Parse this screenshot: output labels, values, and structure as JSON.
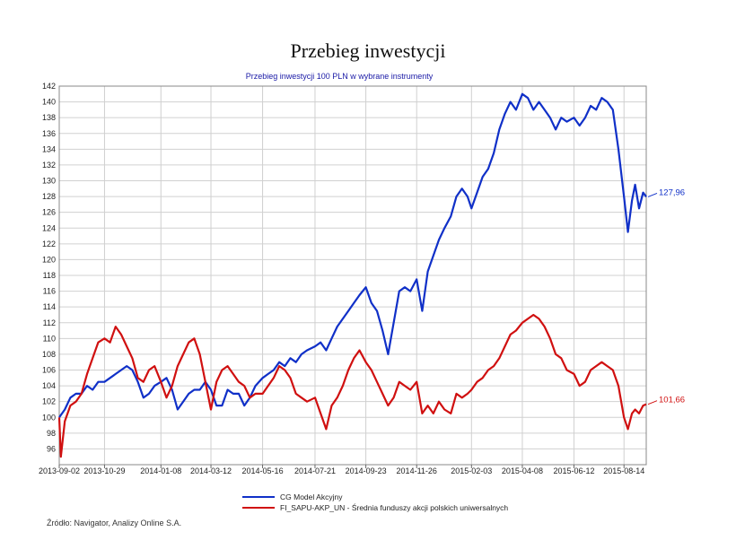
{
  "page": {
    "title": "Przebieg inwestycji",
    "source": "Źródło: Navigator, Analizy Online S.A."
  },
  "chart_data": {
    "type": "line",
    "title": "Przebieg inwestycji",
    "subtitle": "Przebieg inwestycji 100 PLN w wybrane instrumenty",
    "xlabel": "",
    "ylabel": "",
    "ylim": [
      94,
      142
    ],
    "yticks": [
      96,
      98,
      100,
      102,
      104,
      106,
      108,
      110,
      112,
      114,
      116,
      118,
      120,
      122,
      124,
      126,
      128,
      130,
      132,
      134,
      136,
      138,
      140,
      142
    ],
    "x_start": "2013-09-02",
    "x_end": "2015-09-11",
    "xticks": [
      "2013-09-02",
      "2013-10-29",
      "2014-01-08",
      "2014-03-12",
      "2014-05-16",
      "2014-07-21",
      "2014-09-23",
      "2014-11-26",
      "2015-02-03",
      "2015-04-08",
      "2015-06-12",
      "2015-08-14"
    ],
    "grid": true,
    "legend": "bottom",
    "series": [
      {
        "name": "CG Model Akcyjny",
        "color": "#1030c8",
        "end_label": "127,96",
        "points": [
          [
            "2013-09-02",
            100.0
          ],
          [
            "2013-09-09",
            101.0
          ],
          [
            "2013-09-16",
            102.5
          ],
          [
            "2013-09-23",
            103.0
          ],
          [
            "2013-09-30",
            103.0
          ],
          [
            "2013-10-07",
            104.0
          ],
          [
            "2013-10-14",
            103.5
          ],
          [
            "2013-10-21",
            104.5
          ],
          [
            "2013-10-29",
            104.5
          ],
          [
            "2013-11-05",
            105.0
          ],
          [
            "2013-11-12",
            105.5
          ],
          [
            "2013-11-19",
            106.0
          ],
          [
            "2013-11-26",
            106.5
          ],
          [
            "2013-12-03",
            106.0
          ],
          [
            "2013-12-10",
            104.5
          ],
          [
            "2013-12-17",
            102.5
          ],
          [
            "2013-12-24",
            103.0
          ],
          [
            "2013-12-31",
            104.0
          ],
          [
            "2014-01-08",
            104.5
          ],
          [
            "2014-01-15",
            105.0
          ],
          [
            "2014-01-22",
            103.5
          ],
          [
            "2014-01-29",
            101.0
          ],
          [
            "2014-02-05",
            102.0
          ],
          [
            "2014-02-12",
            103.0
          ],
          [
            "2014-02-19",
            103.5
          ],
          [
            "2014-02-26",
            103.5
          ],
          [
            "2014-03-05",
            104.5
          ],
          [
            "2014-03-12",
            103.5
          ],
          [
            "2014-03-19",
            101.5
          ],
          [
            "2014-03-26",
            101.5
          ],
          [
            "2014-04-02",
            103.5
          ],
          [
            "2014-04-09",
            103.0
          ],
          [
            "2014-04-16",
            103.0
          ],
          [
            "2014-04-23",
            101.5
          ],
          [
            "2014-04-30",
            102.5
          ],
          [
            "2014-05-07",
            104.0
          ],
          [
            "2014-05-16",
            105.0
          ],
          [
            "2014-05-23",
            105.5
          ],
          [
            "2014-05-30",
            106.0
          ],
          [
            "2014-06-06",
            107.0
          ],
          [
            "2014-06-13",
            106.5
          ],
          [
            "2014-06-20",
            107.5
          ],
          [
            "2014-06-27",
            107.0
          ],
          [
            "2014-07-04",
            108.0
          ],
          [
            "2014-07-11",
            108.5
          ],
          [
            "2014-07-21",
            109.0
          ],
          [
            "2014-07-28",
            109.5
          ],
          [
            "2014-08-04",
            108.5
          ],
          [
            "2014-08-11",
            110.0
          ],
          [
            "2014-08-18",
            111.5
          ],
          [
            "2014-08-25",
            112.5
          ],
          [
            "2014-09-01",
            113.5
          ],
          [
            "2014-09-08",
            114.5
          ],
          [
            "2014-09-15",
            115.5
          ],
          [
            "2014-09-23",
            116.5
          ],
          [
            "2014-09-30",
            114.5
          ],
          [
            "2014-10-07",
            113.5
          ],
          [
            "2014-10-14",
            111.0
          ],
          [
            "2014-10-21",
            108.0
          ],
          [
            "2014-10-28",
            112.0
          ],
          [
            "2014-11-04",
            116.0
          ],
          [
            "2014-11-11",
            116.5
          ],
          [
            "2014-11-18",
            116.0
          ],
          [
            "2014-11-26",
            117.5
          ],
          [
            "2014-12-03",
            113.5
          ],
          [
            "2014-12-10",
            118.5
          ],
          [
            "2014-12-17",
            120.5
          ],
          [
            "2014-12-24",
            122.5
          ],
          [
            "2014-12-31",
            124.0
          ],
          [
            "2015-01-08",
            125.5
          ],
          [
            "2015-01-15",
            128.0
          ],
          [
            "2015-01-22",
            129.0
          ],
          [
            "2015-01-29",
            128.0
          ],
          [
            "2015-02-03",
            126.5
          ],
          [
            "2015-02-10",
            128.5
          ],
          [
            "2015-02-17",
            130.5
          ],
          [
            "2015-02-24",
            131.5
          ],
          [
            "2015-03-03",
            133.5
          ],
          [
            "2015-03-10",
            136.5
          ],
          [
            "2015-03-17",
            138.5
          ],
          [
            "2015-03-24",
            140.0
          ],
          [
            "2015-03-31",
            139.0
          ],
          [
            "2015-04-08",
            141.0
          ],
          [
            "2015-04-15",
            140.5
          ],
          [
            "2015-04-22",
            139.0
          ],
          [
            "2015-04-29",
            140.0
          ],
          [
            "2015-05-06",
            139.0
          ],
          [
            "2015-05-13",
            138.0
          ],
          [
            "2015-05-20",
            136.5
          ],
          [
            "2015-05-27",
            138.0
          ],
          [
            "2015-06-03",
            137.5
          ],
          [
            "2015-06-12",
            138.0
          ],
          [
            "2015-06-19",
            137.0
          ],
          [
            "2015-06-26",
            138.0
          ],
          [
            "2015-07-03",
            139.5
          ],
          [
            "2015-07-10",
            139.0
          ],
          [
            "2015-07-17",
            140.5
          ],
          [
            "2015-07-24",
            140.0
          ],
          [
            "2015-07-31",
            139.0
          ],
          [
            "2015-08-07",
            134.0
          ],
          [
            "2015-08-14",
            128.0
          ],
          [
            "2015-08-19",
            123.5
          ],
          [
            "2015-08-24",
            127.5
          ],
          [
            "2015-08-28",
            129.5
          ],
          [
            "2015-09-02",
            126.5
          ],
          [
            "2015-09-07",
            128.5
          ],
          [
            "2015-09-11",
            127.96
          ]
        ]
      },
      {
        "name": "FI_SAPU-AKP_UN - Średnia funduszy akcji polskich uniwersalnych",
        "color": "#d01010",
        "end_label": "101,66",
        "points": [
          [
            "2013-09-02",
            100.0
          ],
          [
            "2013-09-04",
            95.0
          ],
          [
            "2013-09-09",
            99.5
          ],
          [
            "2013-09-16",
            101.5
          ],
          [
            "2013-09-23",
            102.0
          ],
          [
            "2013-09-30",
            103.0
          ],
          [
            "2013-10-07",
            105.5
          ],
          [
            "2013-10-14",
            107.5
          ],
          [
            "2013-10-21",
            109.5
          ],
          [
            "2013-10-29",
            110.0
          ],
          [
            "2013-11-05",
            109.5
          ],
          [
            "2013-11-12",
            111.5
          ],
          [
            "2013-11-19",
            110.5
          ],
          [
            "2013-11-26",
            109.0
          ],
          [
            "2013-12-03",
            107.5
          ],
          [
            "2013-12-10",
            105.0
          ],
          [
            "2013-12-17",
            104.5
          ],
          [
            "2013-12-24",
            106.0
          ],
          [
            "2013-12-31",
            106.5
          ],
          [
            "2014-01-08",
            104.5
          ],
          [
            "2014-01-15",
            102.5
          ],
          [
            "2014-01-22",
            104.0
          ],
          [
            "2014-01-29",
            106.5
          ],
          [
            "2014-02-05",
            108.0
          ],
          [
            "2014-02-12",
            109.5
          ],
          [
            "2014-02-19",
            110.0
          ],
          [
            "2014-02-26",
            108.0
          ],
          [
            "2014-03-05",
            104.5
          ],
          [
            "2014-03-12",
            101.0
          ],
          [
            "2014-03-19",
            104.5
          ],
          [
            "2014-03-26",
            106.0
          ],
          [
            "2014-04-02",
            106.5
          ],
          [
            "2014-04-09",
            105.5
          ],
          [
            "2014-04-16",
            104.5
          ],
          [
            "2014-04-23",
            104.0
          ],
          [
            "2014-04-30",
            102.5
          ],
          [
            "2014-05-07",
            103.0
          ],
          [
            "2014-05-16",
            103.0
          ],
          [
            "2014-05-23",
            104.0
          ],
          [
            "2014-05-30",
            105.0
          ],
          [
            "2014-06-06",
            106.5
          ],
          [
            "2014-06-13",
            106.0
          ],
          [
            "2014-06-20",
            105.0
          ],
          [
            "2014-06-27",
            103.0
          ],
          [
            "2014-07-04",
            102.5
          ],
          [
            "2014-07-11",
            102.0
          ],
          [
            "2014-07-21",
            102.5
          ],
          [
            "2014-07-28",
            100.5
          ],
          [
            "2014-08-04",
            98.5
          ],
          [
            "2014-08-11",
            101.5
          ],
          [
            "2014-08-18",
            102.5
          ],
          [
            "2014-08-25",
            104.0
          ],
          [
            "2014-09-01",
            106.0
          ],
          [
            "2014-09-08",
            107.5
          ],
          [
            "2014-09-15",
            108.5
          ],
          [
            "2014-09-23",
            107.0
          ],
          [
            "2014-09-30",
            106.0
          ],
          [
            "2014-10-07",
            104.5
          ],
          [
            "2014-10-14",
            103.0
          ],
          [
            "2014-10-21",
            101.5
          ],
          [
            "2014-10-28",
            102.5
          ],
          [
            "2014-11-04",
            104.5
          ],
          [
            "2014-11-11",
            104.0
          ],
          [
            "2014-11-18",
            103.5
          ],
          [
            "2014-11-26",
            104.5
          ],
          [
            "2014-12-03",
            100.5
          ],
          [
            "2014-12-10",
            101.5
          ],
          [
            "2014-12-17",
            100.5
          ],
          [
            "2014-12-24",
            102.0
          ],
          [
            "2014-12-31",
            101.0
          ],
          [
            "2015-01-08",
            100.5
          ],
          [
            "2015-01-15",
            103.0
          ],
          [
            "2015-01-22",
            102.5
          ],
          [
            "2015-01-29",
            103.0
          ],
          [
            "2015-02-03",
            103.5
          ],
          [
            "2015-02-10",
            104.5
          ],
          [
            "2015-02-17",
            105.0
          ],
          [
            "2015-02-24",
            106.0
          ],
          [
            "2015-03-03",
            106.5
          ],
          [
            "2015-03-10",
            107.5
          ],
          [
            "2015-03-17",
            109.0
          ],
          [
            "2015-03-24",
            110.5
          ],
          [
            "2015-03-31",
            111.0
          ],
          [
            "2015-04-08",
            112.0
          ],
          [
            "2015-04-15",
            112.5
          ],
          [
            "2015-04-22",
            113.0
          ],
          [
            "2015-04-29",
            112.5
          ],
          [
            "2015-05-06",
            111.5
          ],
          [
            "2015-05-13",
            110.0
          ],
          [
            "2015-05-20",
            108.0
          ],
          [
            "2015-05-27",
            107.5
          ],
          [
            "2015-06-03",
            106.0
          ],
          [
            "2015-06-12",
            105.5
          ],
          [
            "2015-06-19",
            104.0
          ],
          [
            "2015-06-26",
            104.5
          ],
          [
            "2015-07-03",
            106.0
          ],
          [
            "2015-07-10",
            106.5
          ],
          [
            "2015-07-17",
            107.0
          ],
          [
            "2015-07-24",
            106.5
          ],
          [
            "2015-07-31",
            106.0
          ],
          [
            "2015-08-07",
            104.0
          ],
          [
            "2015-08-14",
            100.0
          ],
          [
            "2015-08-19",
            98.5
          ],
          [
            "2015-08-24",
            100.5
          ],
          [
            "2015-08-28",
            101.0
          ],
          [
            "2015-09-02",
            100.5
          ],
          [
            "2015-09-07",
            101.5
          ],
          [
            "2015-09-11",
            101.66
          ]
        ]
      }
    ]
  }
}
